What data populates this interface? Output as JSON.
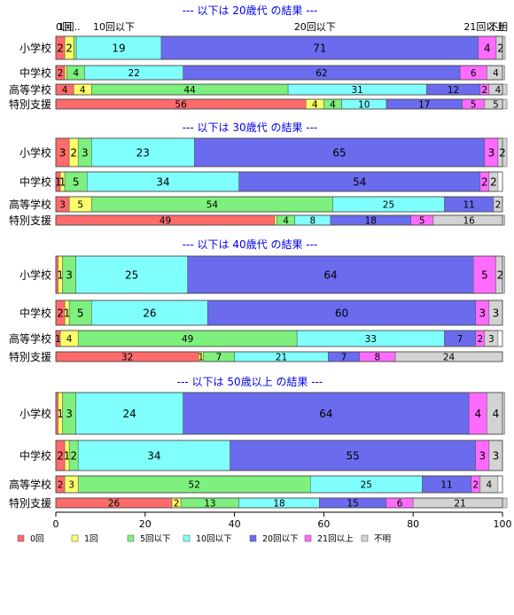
{
  "chart_data": {
    "type": "bar",
    "orientation": "horizontal",
    "stacked": true,
    "xlim": [
      0,
      100
    ],
    "xticks": [
      0,
      20,
      40,
      60,
      80,
      100
    ],
    "grid": false,
    "legend_position": "bottom",
    "categories": [
      "小学校",
      "中学校",
      "高等学校",
      "特別支援"
    ],
    "series_names": [
      "0回",
      "1回",
      "5回以下",
      "10回以下",
      "20回以下",
      "21回以上",
      "不明"
    ],
    "colors": [
      "#ff6b6b",
      "#ffff6b",
      "#7df07d",
      "#80ffff",
      "#6b6bee",
      "#ff6bff",
      "#d3d3d3"
    ],
    "top_labels": [
      {
        "text": "0回",
        "x": 0
      },
      {
        "text": "1回..",
        "x": 3
      },
      {
        "text": "10回以下",
        "x": 13
      },
      {
        "text": "20回以下",
        "x": 58
      },
      {
        "text": "21回以上",
        "x": 96
      },
      {
        "text": "不明",
        "x": 99
      }
    ],
    "panels": [
      {
        "title": "--- 以下は 20歳代 の結果 ---",
        "rows": [
          {
            "category": "小学校",
            "values": [
              2,
              2,
              0.6,
              19,
              71,
              4,
              2
            ],
            "labels": [
              "2",
              "2",
              "",
              "19",
              "71",
              "4",
              "2"
            ]
          },
          {
            "category": "中学校",
            "values": [
              2,
              0.5,
              4,
              22,
              62,
              6,
              4
            ],
            "labels": [
              "2",
              "",
              "4",
              "22",
              "62",
              "6",
              "4"
            ]
          },
          {
            "category": "高等学校",
            "values": [
              4,
              4,
              44,
              31,
              12,
              2,
              4
            ],
            "labels": [
              "4",
              "4",
              "44",
              "31",
              "12",
              "2",
              "4"
            ]
          },
          {
            "category": "特別支援",
            "values": [
              56,
              4,
              4,
              10,
              17,
              5,
              5
            ],
            "labels": [
              "56",
              "4",
              "4",
              "10",
              "17",
              "5",
              "5"
            ]
          }
        ]
      },
      {
        "title": "--- 以下は 30歳代 の結果 ---",
        "rows": [
          {
            "category": "小学校",
            "values": [
              3,
              2,
              3,
              23,
              65,
              3,
              2
            ],
            "labels": [
              "3",
              "2",
              "3",
              "23",
              "65",
              "3",
              "2"
            ]
          },
          {
            "category": "中学校",
            "values": [
              1,
              1,
              5,
              34,
              54,
              2,
              2
            ],
            "labels": [
              "1",
              "1",
              "5",
              "34",
              "54",
              "2",
              "2"
            ]
          },
          {
            "category": "高等学校",
            "values": [
              3,
              5,
              54,
              25,
              11,
              0,
              2
            ],
            "labels": [
              "3",
              "5",
              "54",
              "25",
              "11",
              "",
              "2"
            ]
          },
          {
            "category": "特別支援",
            "values": [
              49,
              0.5,
              4,
              8,
              18,
              5,
              16
            ],
            "labels": [
              "49",
              "",
              "4",
              "8",
              "18",
              "5",
              "16"
            ]
          }
        ]
      },
      {
        "title": "--- 以下は 40歳代 の結果 ---",
        "rows": [
          {
            "category": "小学校",
            "values": [
              0.5,
              1,
              3,
              25,
              64,
              5,
              2
            ],
            "labels": [
              "",
              "1",
              "3",
              "25",
              "64",
              "5",
              "2"
            ]
          },
          {
            "category": "中学校",
            "values": [
              2,
              1,
              5,
              26,
              60,
              3,
              3
            ],
            "labels": [
              "2",
              "1",
              "5",
              "26",
              "60",
              "3",
              "3"
            ]
          },
          {
            "category": "高等学校",
            "values": [
              1,
              4,
              49,
              33,
              7,
              2,
              3
            ],
            "labels": [
              "1",
              "4",
              "49",
              "33",
              "7",
              "2",
              "3"
            ]
          },
          {
            "category": "特別支援",
            "values": [
              32,
              1,
              7,
              21,
              7,
              8,
              24
            ],
            "labels": [
              "32",
              "1",
              "7",
              "21",
              "7",
              "8",
              "24"
            ]
          }
        ]
      },
      {
        "title": "--- 以下は 50歳以上 の結果 ---",
        "rows": [
          {
            "category": "小学校",
            "values": [
              0.5,
              1,
              3,
              24,
              64,
              4,
              4
            ],
            "labels": [
              "",
              "1",
              "3",
              "24",
              "64",
              "4",
              "4"
            ]
          },
          {
            "category": "中学校",
            "values": [
              2,
              1,
              2,
              34,
              55,
              3,
              3
            ],
            "labels": [
              "2",
              "1",
              "2",
              "34",
              "55",
              "3",
              "3"
            ]
          },
          {
            "category": "高等学校",
            "values": [
              2,
              3,
              52,
              25,
              11,
              2,
              4
            ],
            "labels": [
              "2",
              "3",
              "52",
              "25",
              "11",
              "2",
              "4"
            ]
          },
          {
            "category": "特別支援",
            "values": [
              26,
              2,
              13,
              18,
              15,
              6,
              21
            ],
            "labels": [
              "26",
              "2",
              "13",
              "18",
              "15",
              "6",
              "21"
            ]
          }
        ]
      }
    ]
  }
}
